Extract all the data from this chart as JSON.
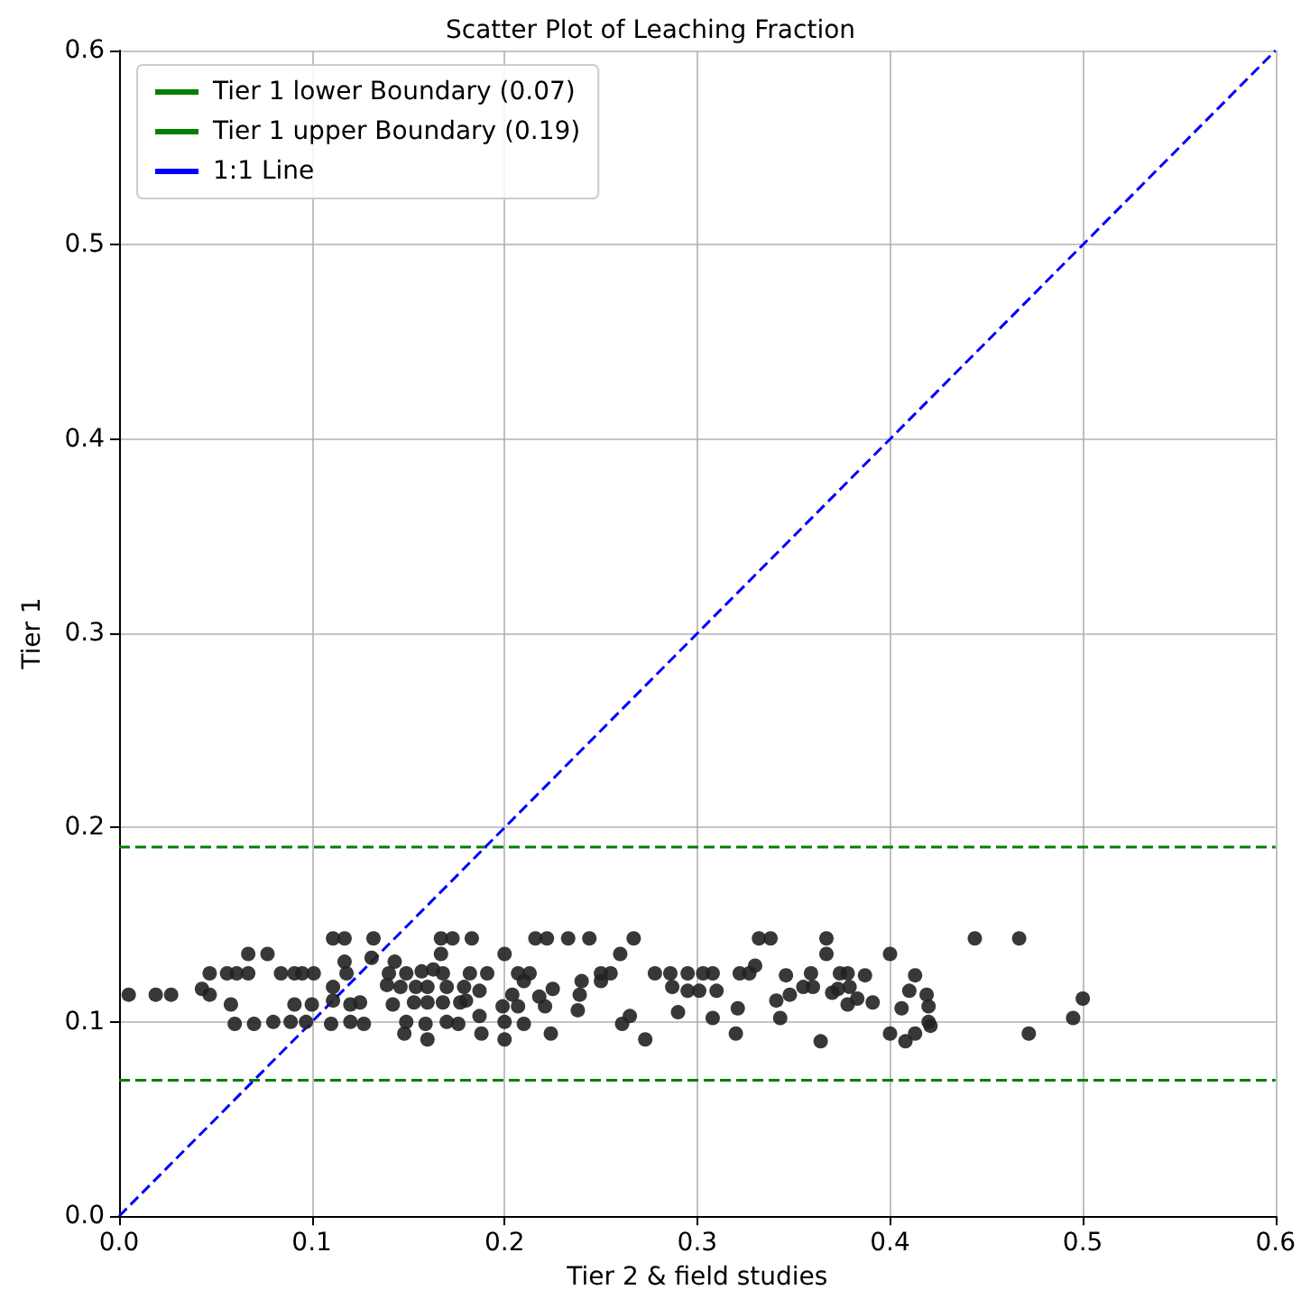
{
  "chart_data": {
    "type": "scatter",
    "title": "Scatter Plot of Leaching Fraction",
    "xlabel": "Tier 2 & field studies",
    "ylabel": "Tier 1",
    "xlim": [
      0,
      0.6
    ],
    "ylim": [
      0,
      0.6
    ],
    "xticks": [
      {
        "value": 0,
        "label": "0.0"
      },
      {
        "value": 0.1,
        "label": "0.1"
      },
      {
        "value": 0.2,
        "label": "0.2"
      },
      {
        "value": 0.3,
        "label": "0.3"
      },
      {
        "value": 0.4,
        "label": "0.4"
      },
      {
        "value": 0.5,
        "label": "0.5"
      },
      {
        "value": 0.6,
        "label": "0.6"
      }
    ],
    "yticks": [
      {
        "value": 0,
        "label": "0.0"
      },
      {
        "value": 0.1,
        "label": "0.1"
      },
      {
        "value": 0.2,
        "label": "0.2"
      },
      {
        "value": 0.3,
        "label": "0.3"
      },
      {
        "value": 0.4,
        "label": "0.4"
      },
      {
        "value": 0.5,
        "label": "0.5"
      },
      {
        "value": 0.6,
        "label": "0.6"
      }
    ],
    "grid": true,
    "legend": "top left",
    "marker": "circle",
    "ref_lines": [
      {
        "axis": "y",
        "value": 0.07,
        "label": "Tier 1 lower Boundary (0.07)",
        "color": "#008000",
        "line_style": "dashed"
      },
      {
        "axis": "y",
        "value": 0.19,
        "label": "Tier 1 upper Boundary (0.19)",
        "color": "#008000",
        "line_style": "dashed"
      }
    ],
    "series": [
      {
        "color": "#222222",
        "x": [
          0.005,
          0.019,
          0.027,
          0.043,
          0.047,
          0.047,
          0.056,
          0.061,
          0.067,
          0.067,
          0.077,
          0.058,
          0.06,
          0.07,
          0.08,
          0.084,
          0.091,
          0.095,
          0.101,
          0.091,
          0.1,
          0.089,
          0.097,
          0.111,
          0.117,
          0.132,
          0.117,
          0.131,
          0.118,
          0.111,
          0.111,
          0.12,
          0.125,
          0.11,
          0.12,
          0.127,
          0.14,
          0.143,
          0.139,
          0.146,
          0.142,
          0.149,
          0.149,
          0.148,
          0.167,
          0.173,
          0.183,
          0.167,
          0.157,
          0.163,
          0.168,
          0.154,
          0.16,
          0.17,
          0.153,
          0.16,
          0.168,
          0.177,
          0.182,
          0.191,
          0.179,
          0.187,
          0.18,
          0.187,
          0.159,
          0.17,
          0.176,
          0.16,
          0.188,
          0.2,
          0.199,
          0.2,
          0.2,
          0.207,
          0.213,
          0.204,
          0.21,
          0.207,
          0.21,
          0.216,
          0.222,
          0.233,
          0.244,
          0.218,
          0.221,
          0.225,
          0.224,
          0.24,
          0.239,
          0.238,
          0.25,
          0.25,
          0.255,
          0.267,
          0.26,
          0.265,
          0.261,
          0.273,
          0.278,
          0.286,
          0.295,
          0.303,
          0.287,
          0.295,
          0.301,
          0.29,
          0.308,
          0.31,
          0.308,
          0.332,
          0.338,
          0.322,
          0.327,
          0.33,
          0.321,
          0.32,
          0.341,
          0.343,
          0.346,
          0.348,
          0.355,
          0.359,
          0.36,
          0.367,
          0.367,
          0.374,
          0.378,
          0.387,
          0.37,
          0.373,
          0.379,
          0.378,
          0.383,
          0.391,
          0.364,
          0.4,
          0.4,
          0.413,
          0.41,
          0.406,
          0.419,
          0.42,
          0.42,
          0.421,
          0.408,
          0.413,
          0.444,
          0.467,
          0.472,
          0.495,
          0.5
        ],
        "values": [
          0.114,
          0.114,
          0.114,
          0.117,
          0.114,
          0.125,
          0.125,
          0.125,
          0.125,
          0.135,
          0.135,
          0.109,
          0.099,
          0.099,
          0.1,
          0.125,
          0.125,
          0.125,
          0.125,
          0.109,
          0.109,
          0.1,
          0.1,
          0.143,
          0.143,
          0.143,
          0.131,
          0.133,
          0.125,
          0.118,
          0.111,
          0.109,
          0.11,
          0.099,
          0.1,
          0.099,
          0.125,
          0.131,
          0.119,
          0.118,
          0.109,
          0.125,
          0.1,
          0.094,
          0.143,
          0.143,
          0.143,
          0.135,
          0.126,
          0.127,
          0.125,
          0.118,
          0.118,
          0.118,
          0.11,
          0.11,
          0.11,
          0.11,
          0.125,
          0.125,
          0.118,
          0.116,
          0.111,
          0.103,
          0.099,
          0.1,
          0.099,
          0.091,
          0.094,
          0.135,
          0.108,
          0.1,
          0.091,
          0.125,
          0.125,
          0.114,
          0.121,
          0.108,
          0.099,
          0.143,
          0.143,
          0.143,
          0.143,
          0.113,
          0.108,
          0.117,
          0.094,
          0.121,
          0.114,
          0.106,
          0.125,
          0.121,
          0.125,
          0.143,
          0.135,
          0.103,
          0.099,
          0.091,
          0.125,
          0.125,
          0.125,
          0.125,
          0.118,
          0.116,
          0.116,
          0.105,
          0.125,
          0.116,
          0.102,
          0.143,
          0.143,
          0.125,
          0.125,
          0.129,
          0.107,
          0.094,
          0.111,
          0.102,
          0.124,
          0.114,
          0.118,
          0.125,
          0.118,
          0.143,
          0.135,
          0.125,
          0.125,
          0.124,
          0.115,
          0.117,
          0.118,
          0.109,
          0.112,
          0.11,
          0.09,
          0.135,
          0.094,
          0.124,
          0.116,
          0.107,
          0.114,
          0.108,
          0.1,
          0.098,
          0.09,
          0.094,
          0.143,
          0.143,
          0.094,
          0.102,
          0.112
        ]
      },
      {
        "type": "line",
        "name": "1:1 Line",
        "color": "#0000ff",
        "line_style": "dashed",
        "marker": "none",
        "x": [
          0,
          0.6
        ],
        "values": [
          0,
          0.6
        ]
      }
    ]
  }
}
